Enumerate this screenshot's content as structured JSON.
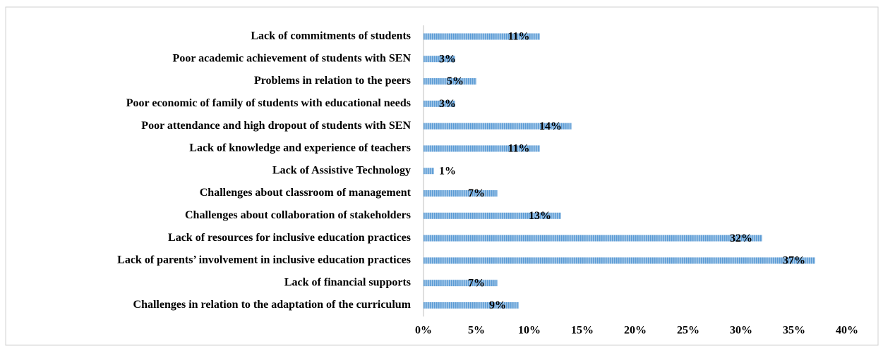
{
  "chart_data": {
    "type": "barh",
    "categories": [
      "Lack of commitments of students",
      "Poor academic achievement of students with SEN",
      "Problems in relation to the peers",
      "Poor economic of family of students with educational needs",
      "Poor attendance and high dropout of students with SEN",
      "Lack of knowledge and experience of teachers",
      "Lack of Assistive Technology",
      "Challenges about classroom of management",
      "Challenges about collaboration of stakeholders",
      "Lack of resources for inclusive education practices",
      "Lack of parents’ involvement in inclusive education practices",
      "Lack of financial supports",
      "Challenges in relation to the adaptation of the curriculum"
    ],
    "values": [
      11,
      3,
      5,
      3,
      14,
      11,
      1,
      7,
      13,
      32,
      37,
      7,
      9
    ],
    "value_labels": [
      "11%",
      "3%",
      "5%",
      "3%",
      "14%",
      "11%",
      "1%",
      "7%",
      "13%",
      "32%",
      "37%",
      "7%",
      "9%"
    ],
    "color": "#5b9bd5",
    "xlim": [
      0,
      40
    ],
    "xticks": [
      {
        "value": 0,
        "label": "0%"
      },
      {
        "value": 5,
        "label": "5%"
      },
      {
        "value": 10,
        "label": "10%"
      },
      {
        "value": 15,
        "label": "15%"
      },
      {
        "value": 20,
        "label": "20%"
      },
      {
        "value": 25,
        "label": "25%"
      },
      {
        "value": 30,
        "label": "30%"
      },
      {
        "value": 35,
        "label": "35%"
      },
      {
        "value": 40,
        "label": "40%"
      }
    ]
  }
}
